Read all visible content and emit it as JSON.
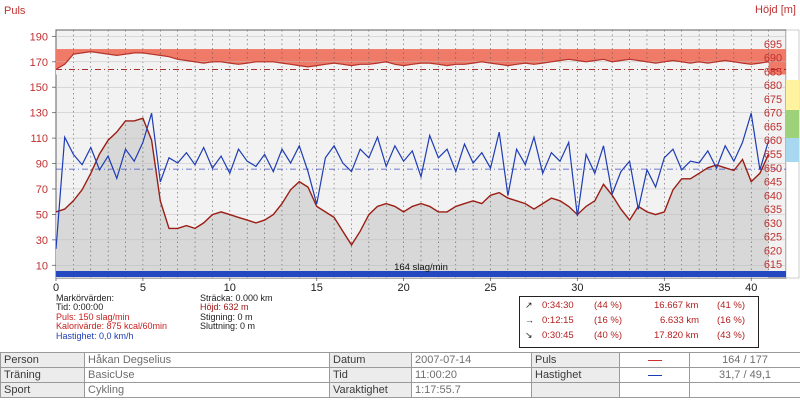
{
  "chart_data": {
    "type": "line",
    "left_axis_title": "Puls",
    "right_axis_title": "Höjd [m]",
    "xlim": [
      0,
      42
    ],
    "x_ticks": [
      0,
      5,
      10,
      15,
      20,
      25,
      30,
      35,
      40
    ],
    "left_ylim": [
      0,
      195
    ],
    "left_ticks": [
      10,
      30,
      50,
      70,
      90,
      110,
      130,
      150,
      170,
      190
    ],
    "right_ylim": [
      610,
      700
    ],
    "right_ticks": [
      615,
      620,
      625,
      630,
      635,
      640,
      645,
      650,
      655,
      660,
      665,
      670,
      675,
      680,
      685,
      690,
      695
    ],
    "heart_zone": [
      160,
      180
    ],
    "avg_pulse": 164,
    "avg_speed": 31.7,
    "speed_scale": 2.7,
    "baseline_label": "164 slag/min",
    "grid": true,
    "series": [
      {
        "name": "Puls",
        "color": "#b4322a",
        "x": [
          0,
          0.5,
          1,
          1.5,
          2,
          2.5,
          3,
          3.5,
          4,
          4.5,
          5,
          5.5,
          6,
          6.5,
          7,
          7.5,
          8,
          8.5,
          9,
          9.5,
          10,
          10.5,
          11,
          11.5,
          12,
          12.5,
          13,
          13.5,
          14,
          14.5,
          15,
          15.5,
          16,
          16.5,
          17,
          17.5,
          18,
          18.5,
          19,
          19.5,
          20,
          20.5,
          21,
          21.5,
          22,
          22.5,
          23,
          23.5,
          24,
          24.5,
          25,
          25.5,
          26,
          26.5,
          27,
          27.5,
          28,
          28.5,
          29,
          29.5,
          30,
          30.5,
          31,
          31.5,
          32,
          32.5,
          33,
          33.5,
          34,
          34.5,
          35,
          35.5,
          36,
          36.5,
          37,
          37.5,
          38,
          38.5,
          39,
          39.5,
          40,
          40.5,
          41
        ],
        "y": [
          164,
          168,
          176,
          177,
          178,
          177,
          176,
          175,
          176,
          177,
          177,
          176,
          175,
          174,
          172,
          171,
          170,
          169,
          170,
          170,
          169,
          168,
          169,
          170,
          170,
          170,
          169,
          168,
          167,
          166,
          167,
          168,
          169,
          168,
          167,
          168,
          168,
          169,
          170,
          168,
          167,
          168,
          169,
          169,
          168,
          167,
          168,
          168,
          169,
          170,
          169,
          168,
          167,
          168,
          169,
          168,
          169,
          170,
          171,
          172,
          171,
          170,
          171,
          172,
          170,
          171,
          172,
          171,
          170,
          169,
          170,
          171,
          170,
          169,
          170,
          169,
          170,
          171,
          170,
          169,
          168,
          169,
          170
        ]
      },
      {
        "name": "Höjd",
        "color": "#9a1e14",
        "x": [
          0,
          0.5,
          1,
          1.5,
          2,
          2.5,
          3,
          3.5,
          4,
          4.5,
          5,
          5.5,
          6,
          6.5,
          7,
          7.5,
          8,
          8.5,
          9,
          9.5,
          10,
          10.5,
          11,
          11.5,
          12,
          12.5,
          13,
          13.5,
          14,
          14.5,
          15,
          15.5,
          16,
          16.5,
          17,
          17.5,
          18,
          18.5,
          19,
          19.5,
          20,
          20.5,
          21,
          21.5,
          22,
          22.5,
          23,
          23.5,
          24,
          24.5,
          25,
          25.5,
          26,
          26.5,
          27,
          27.5,
          28,
          28.5,
          29,
          29.5,
          30,
          30.5,
          31,
          31.5,
          32,
          32.5,
          33,
          33.5,
          34,
          34.5,
          35,
          35.5,
          36,
          36.5,
          37,
          37.5,
          38,
          38.5,
          39,
          39.5,
          40,
          40.5,
          41
        ],
        "y": [
          634,
          635,
          638,
          642,
          648,
          655,
          660,
          663,
          667,
          667,
          668,
          660,
          638,
          628,
          628,
          629,
          628,
          630,
          633,
          634,
          633,
          632,
          631,
          630,
          631,
          633,
          637,
          642,
          645,
          643,
          636,
          634,
          632,
          627,
          622,
          627,
          633,
          636,
          637,
          636,
          634,
          636,
          637,
          636,
          634,
          634,
          636,
          637,
          638,
          637,
          640,
          641,
          639,
          638,
          637,
          635,
          637,
          639,
          638,
          636,
          633,
          636,
          638,
          644,
          640,
          635,
          631,
          636,
          634,
          633,
          634,
          642,
          646,
          646,
          648,
          650,
          651,
          650,
          649,
          653,
          645,
          648,
          655
        ]
      },
      {
        "name": "Hastighet",
        "color": "#1e3cb4",
        "x": [
          0,
          0.5,
          1,
          1.5,
          2,
          2.5,
          3,
          3.5,
          4,
          4.5,
          5,
          5.5,
          6,
          6.5,
          7,
          7.5,
          8,
          8.5,
          9,
          9.5,
          10,
          10.5,
          11,
          11.5,
          12,
          12.5,
          13,
          13.5,
          14,
          14.5,
          15,
          15.5,
          16,
          16.5,
          17,
          17.5,
          18,
          18.5,
          19,
          19.5,
          20,
          20.5,
          21,
          21.5,
          22,
          22.5,
          23,
          23.5,
          24,
          24.5,
          25,
          25.5,
          26,
          26.5,
          27,
          27.5,
          28,
          28.5,
          29,
          29.5,
          30,
          30.5,
          31,
          31.5,
          32,
          32.5,
          33,
          33.5,
          34,
          34.5,
          35,
          35.5,
          36,
          36.5,
          37,
          37.5,
          38,
          38.5,
          39,
          39.5,
          40,
          40.5,
          41
        ],
        "y": [
          8.5,
          41.0,
          36.0,
          33.0,
          38.0,
          31.5,
          35.5,
          29.0,
          37.5,
          34.0,
          39.5,
          48.0,
          28.0,
          35.0,
          33.5,
          36.5,
          33.0,
          38.0,
          32.0,
          35.5,
          30.5,
          37.5,
          34.0,
          32.5,
          36.0,
          31.0,
          37.5,
          33.5,
          38.5,
          31.0,
          21.5,
          35.0,
          38.5,
          33.5,
          31.0,
          37.5,
          35.0,
          41.0,
          32.5,
          38.5,
          34.0,
          37.0,
          29.5,
          41.5,
          35.0,
          37.5,
          31.0,
          39.0,
          33.5,
          36.5,
          32.0,
          42.5,
          24.0,
          37.5,
          33.0,
          41.0,
          30.5,
          36.5,
          34.0,
          39.5,
          18.0,
          36.0,
          30.5,
          38.5,
          24.5,
          31.0,
          34.0,
          20.0,
          31.5,
          26.5,
          35.0,
          37.5,
          31.5,
          34.0,
          33.5,
          37.0,
          32.0,
          38.5,
          34.0,
          39.5,
          48.0,
          31.5,
          40.0
        ]
      }
    ]
  },
  "markers": {
    "col1": [
      "Markörvärden:",
      "Tid: 0:00:00",
      "Puls: 150 slag/min",
      "Kalorivärde: 875 kcal/60min",
      "Hastighet: 0,0 km/h"
    ],
    "col2": [
      "Sträcka: 0.000 km",
      "Höjd: 632 m",
      "Stigning: 0 m",
      "Sluttning: 0 m"
    ]
  },
  "stats": [
    {
      "arrow": "↗",
      "time": "0:34:30",
      "pct1": "(44 %)",
      "dist": "16.667 km",
      "pct2": "(41 %)"
    },
    {
      "arrow": "→",
      "time": "0:12:15",
      "pct1": "(16 %)",
      "dist": "6.633 km",
      "pct2": "(16 %)"
    },
    {
      "arrow": "↘",
      "time": "0:30:45",
      "pct1": "(40 %)",
      "dist": "17.820 km",
      "pct2": "(43 %)"
    }
  ],
  "info": {
    "person_label": "Person",
    "person_value": "Håkan Degselius",
    "training_label": "Träning",
    "training_value": "BasicUse",
    "sport_label": "Sport",
    "sport_value": "Cykling",
    "date_label": "Datum",
    "date_value": "2007-07-14",
    "time_label": "Tid",
    "time_value": "11:00:20",
    "duration_label": "Varaktighet",
    "duration_value": "1:17:55.7",
    "pulse_label": "Puls",
    "pulse_value": "164 / 177",
    "speed_label": "Hastighet",
    "speed_value": "31,7 / 49,1",
    "pulse_color": "#c83232",
    "speed_color": "#1e3cb4"
  }
}
